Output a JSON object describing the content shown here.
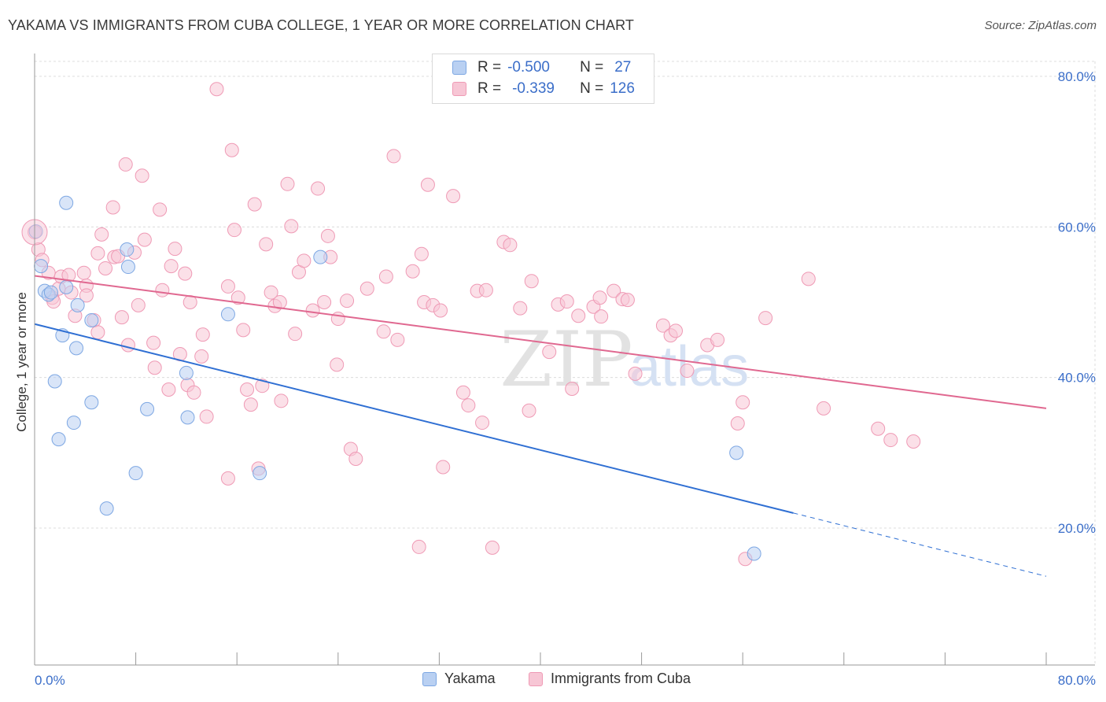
{
  "title": "YAKAMA VS IMMIGRANTS FROM CUBA COLLEGE, 1 YEAR OR MORE CORRELATION CHART",
  "source": "Source: ZipAtlas.com",
  "watermark": {
    "zip": "ZIP",
    "atlas": "atlas"
  },
  "colors": {
    "blue": "#7da7e3",
    "blue_fill": "#b9d0f2",
    "blue_line": "#2f6fd3",
    "pink": "#ef9ab5",
    "pink_fill": "#f7c6d5",
    "pink_line": "#e06890",
    "axis_text": "#3b6ec9"
  },
  "legend": {
    "r_label": "R =",
    "n_label": "N =",
    "rows": [
      {
        "series": "Yakama",
        "r": "-0.500",
        "n": "27"
      },
      {
        "series": "Immigrants from Cuba",
        "r": "-0.339",
        "n": "126"
      }
    ]
  },
  "chart_data": {
    "type": "scatter",
    "title": "YAKAMA VS IMMIGRANTS FROM CUBA COLLEGE, 1 YEAR OR MORE CORRELATION CHART",
    "xlabel": "",
    "ylabel": "College, 1 year or more",
    "xlim": [
      0,
      80
    ],
    "ylim": [
      0,
      82
    ],
    "x_tick_labels": [
      "0.0%",
      "80.0%"
    ],
    "y_ticks": [
      20,
      40,
      60,
      80
    ],
    "y_tick_labels": [
      "20.0%",
      "40.0%",
      "60.0%",
      "80.0%"
    ],
    "grid": true,
    "series": [
      {
        "name": "Yakama",
        "r": -0.5,
        "n": 27,
        "points": [
          [
            0.1,
            59.4
          ],
          [
            0.5,
            54.8
          ],
          [
            0.8,
            51.5
          ],
          [
            1.1,
            51.0
          ],
          [
            1.3,
            51.3
          ],
          [
            2.5,
            63.2
          ],
          [
            2.5,
            52.0
          ],
          [
            3.4,
            49.6
          ],
          [
            2.2,
            45.6
          ],
          [
            3.3,
            43.9
          ],
          [
            1.6,
            39.5
          ],
          [
            4.5,
            47.6
          ],
          [
            7.3,
            57.0
          ],
          [
            7.4,
            54.7
          ],
          [
            15.3,
            48.4
          ],
          [
            22.6,
            56.0
          ],
          [
            4.5,
            36.7
          ],
          [
            8.9,
            35.8
          ],
          [
            12.0,
            40.6
          ],
          [
            12.1,
            34.7
          ],
          [
            3.1,
            34.0
          ],
          [
            1.9,
            31.8
          ],
          [
            8.0,
            27.3
          ],
          [
            17.8,
            27.3
          ],
          [
            5.7,
            22.6
          ],
          [
            55.5,
            30.0
          ],
          [
            56.9,
            16.6
          ]
        ],
        "trend": {
          "x0": 0,
          "y0": 47.1,
          "x1": 60,
          "y1": 22.0,
          "x_dash_end": 80,
          "y_dash_end": 13.6
        }
      },
      {
        "name": "Immigrants from Cuba",
        "r": -0.339,
        "n": 126,
        "points": [
          [
            0.0,
            59.3
          ],
          [
            0.3,
            57.0
          ],
          [
            0.6,
            55.6
          ],
          [
            1.1,
            53.9
          ],
          [
            1.4,
            50.6
          ],
          [
            1.5,
            50.1
          ],
          [
            1.9,
            51.8
          ],
          [
            2.1,
            53.4
          ],
          [
            2.7,
            53.6
          ],
          [
            2.9,
            51.3
          ],
          [
            3.2,
            48.2
          ],
          [
            3.9,
            53.9
          ],
          [
            4.1,
            52.2
          ],
          [
            4.1,
            50.9
          ],
          [
            4.7,
            47.6
          ],
          [
            5.0,
            56.5
          ],
          [
            5.0,
            46.0
          ],
          [
            5.3,
            59.0
          ],
          [
            5.6,
            54.5
          ],
          [
            6.2,
            62.6
          ],
          [
            6.3,
            56.0
          ],
          [
            6.6,
            56.1
          ],
          [
            6.9,
            48.0
          ],
          [
            7.2,
            68.3
          ],
          [
            7.4,
            44.3
          ],
          [
            7.9,
            56.6
          ],
          [
            8.2,
            49.6
          ],
          [
            8.5,
            66.8
          ],
          [
            8.7,
            58.3
          ],
          [
            9.4,
            44.6
          ],
          [
            9.5,
            41.3
          ],
          [
            9.9,
            62.3
          ],
          [
            10.1,
            51.6
          ],
          [
            10.6,
            38.4
          ],
          [
            10.8,
            54.8
          ],
          [
            11.1,
            57.1
          ],
          [
            11.5,
            43.1
          ],
          [
            11.9,
            53.8
          ],
          [
            12.1,
            39.0
          ],
          [
            12.3,
            50.0
          ],
          [
            12.6,
            38.0
          ],
          [
            13.2,
            42.8
          ],
          [
            13.3,
            45.7
          ],
          [
            13.6,
            34.8
          ],
          [
            14.4,
            78.3
          ],
          [
            15.3,
            52.1
          ],
          [
            15.3,
            26.6
          ],
          [
            15.6,
            70.2
          ],
          [
            15.8,
            59.6
          ],
          [
            16.1,
            50.6
          ],
          [
            16.5,
            46.3
          ],
          [
            16.8,
            38.4
          ],
          [
            17.1,
            36.4
          ],
          [
            17.4,
            63.0
          ],
          [
            17.7,
            27.9
          ],
          [
            18.0,
            38.9
          ],
          [
            18.3,
            57.7
          ],
          [
            18.7,
            51.3
          ],
          [
            19.0,
            49.5
          ],
          [
            19.4,
            50.0
          ],
          [
            19.5,
            36.9
          ],
          [
            20.0,
            65.7
          ],
          [
            20.3,
            60.1
          ],
          [
            20.6,
            45.8
          ],
          [
            20.9,
            54.0
          ],
          [
            21.3,
            55.5
          ],
          [
            22.0,
            48.9
          ],
          [
            22.4,
            65.1
          ],
          [
            22.9,
            50.0
          ],
          [
            23.2,
            58.8
          ],
          [
            23.4,
            56.0
          ],
          [
            23.9,
            41.7
          ],
          [
            24.0,
            47.8
          ],
          [
            24.7,
            50.2
          ],
          [
            25.0,
            30.5
          ],
          [
            25.4,
            29.2
          ],
          [
            26.3,
            51.8
          ],
          [
            27.6,
            46.1
          ],
          [
            27.8,
            53.4
          ],
          [
            28.4,
            69.4
          ],
          [
            28.7,
            45.0
          ],
          [
            29.9,
            54.1
          ],
          [
            30.4,
            17.5
          ],
          [
            30.6,
            56.4
          ],
          [
            30.8,
            50.0
          ],
          [
            31.1,
            65.6
          ],
          [
            31.5,
            49.6
          ],
          [
            32.1,
            48.9
          ],
          [
            32.3,
            28.1
          ],
          [
            33.1,
            64.1
          ],
          [
            33.9,
            38.0
          ],
          [
            34.3,
            36.3
          ],
          [
            35.0,
            51.5
          ],
          [
            35.4,
            34.0
          ],
          [
            35.7,
            51.6
          ],
          [
            36.2,
            17.4
          ],
          [
            37.1,
            58.0
          ],
          [
            37.6,
            57.6
          ],
          [
            38.4,
            49.2
          ],
          [
            39.1,
            35.6
          ],
          [
            39.3,
            52.8
          ],
          [
            40.7,
            43.4
          ],
          [
            41.4,
            49.7
          ],
          [
            42.1,
            50.1
          ],
          [
            42.5,
            38.5
          ],
          [
            43.0,
            48.2
          ],
          [
            44.2,
            49.4
          ],
          [
            44.7,
            50.6
          ],
          [
            44.8,
            48.1
          ],
          [
            45.8,
            51.5
          ],
          [
            46.5,
            50.4
          ],
          [
            46.9,
            50.3
          ],
          [
            47.5,
            40.5
          ],
          [
            49.7,
            46.9
          ],
          [
            50.3,
            45.6
          ],
          [
            50.7,
            46.2
          ],
          [
            51.6,
            40.9
          ],
          [
            53.2,
            44.3
          ],
          [
            54.0,
            45.0
          ],
          [
            55.6,
            33.9
          ],
          [
            56.0,
            36.7
          ],
          [
            61.2,
            53.1
          ],
          [
            62.4,
            35.9
          ],
          [
            66.7,
            33.2
          ],
          [
            67.7,
            31.7
          ],
          [
            69.5,
            31.5
          ],
          [
            57.8,
            47.9
          ],
          [
            56.2,
            15.9
          ]
        ],
        "trend": {
          "x0": 0,
          "y0": 53.5,
          "x1": 80,
          "y1": 35.9
        }
      }
    ]
  }
}
